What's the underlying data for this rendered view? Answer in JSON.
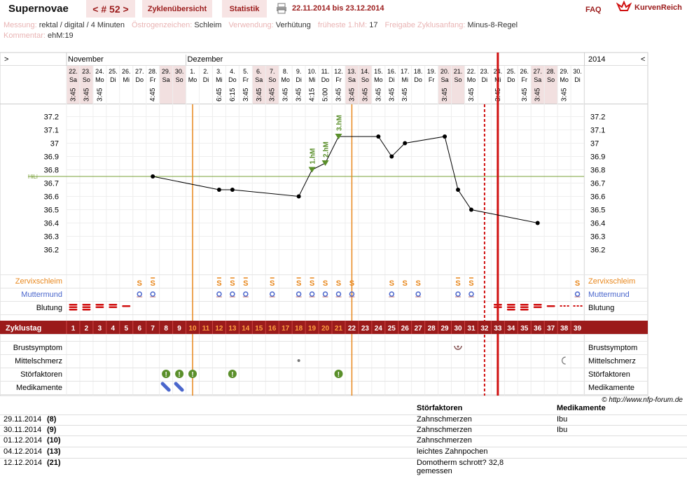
{
  "header": {
    "title": "Supernovae",
    "cycle_nav": "< # 52 >",
    "tab_overview": "Zyklenübersicht",
    "tab_stats": "Statistik",
    "date_range": "22.11.2014 bis 23.12.2014",
    "faq": "FAQ",
    "logo_text": "KurvenReich"
  },
  "meta": [
    {
      "label": "Messung:",
      "value": "rektal / digital / 4 Minuten"
    },
    {
      "label": "Östrogenzeichen:",
      "value": "Schleim"
    },
    {
      "label": "Verwendung:",
      "value": "Verhütung"
    },
    {
      "label": "früheste 1.hM:",
      "value": "17"
    },
    {
      "label": "Freigabe Zyklusanfang:",
      "value": "Minus-8-Regel"
    }
  ],
  "comment": {
    "label": "Kommentar:",
    "value": "ehM:19"
  },
  "copyright": "© http://www.nfp-forum.de",
  "colors": {
    "accent": "#9b1b1b",
    "tab_bg": "#f7e4e4",
    "orange": "#e8871c",
    "red": "#d01010",
    "green": "#5a8f2a",
    "blue": "#4a66cc"
  },
  "chart_data": {
    "type": "line",
    "nav_left": ">",
    "nav_right": "<",
    "year": "2014",
    "months": [
      {
        "label": "November",
        "day": 1
      },
      {
        "label": "Dezember",
        "day": 10
      }
    ],
    "days": [
      {
        "d": 1,
        "date": "22.",
        "wd": "Sa",
        "time": "3:45",
        "we": true
      },
      {
        "d": 2,
        "date": "23.",
        "wd": "So",
        "time": "3:45",
        "we": true
      },
      {
        "d": 3,
        "date": "24.",
        "wd": "Mo",
        "time": "3:45",
        "we": false
      },
      {
        "d": 4,
        "date": "25.",
        "wd": "Di",
        "time": "",
        "we": false
      },
      {
        "d": 5,
        "date": "26.",
        "wd": "Mi",
        "time": "",
        "we": false
      },
      {
        "d": 6,
        "date": "27.",
        "wd": "Do",
        "time": "",
        "we": false
      },
      {
        "d": 7,
        "date": "28.",
        "wd": "Fr",
        "time": "4:45",
        "we": false
      },
      {
        "d": 8,
        "date": "29.",
        "wd": "Sa",
        "time": "",
        "we": true
      },
      {
        "d": 9,
        "date": "30.",
        "wd": "So",
        "time": "",
        "we": true
      },
      {
        "d": 10,
        "date": "1.",
        "wd": "Mo",
        "time": "",
        "we": false
      },
      {
        "d": 11,
        "date": "2.",
        "wd": "Di",
        "time": "",
        "we": false
      },
      {
        "d": 12,
        "date": "3.",
        "wd": "Mi",
        "time": "6:45",
        "we": false
      },
      {
        "d": 13,
        "date": "4.",
        "wd": "Do",
        "time": "6:15",
        "we": false
      },
      {
        "d": 14,
        "date": "5.",
        "wd": "Fr",
        "time": "3:45",
        "we": false
      },
      {
        "d": 15,
        "date": "6.",
        "wd": "Sa",
        "time": "3:45",
        "we": true
      },
      {
        "d": 16,
        "date": "7.",
        "wd": "So",
        "time": "3:45",
        "we": true
      },
      {
        "d": 17,
        "date": "8.",
        "wd": "Mo",
        "time": "3:45",
        "we": false
      },
      {
        "d": 18,
        "date": "9.",
        "wd": "Di",
        "time": "3:45",
        "we": false
      },
      {
        "d": 19,
        "date": "10.",
        "wd": "Mi",
        "time": "4:15",
        "we": false
      },
      {
        "d": 20,
        "date": "11.",
        "wd": "Do",
        "time": "5:00",
        "we": false
      },
      {
        "d": 21,
        "date": "12.",
        "wd": "Fr",
        "time": "3:45",
        "we": false
      },
      {
        "d": 22,
        "date": "13.",
        "wd": "Sa",
        "time": "3:45",
        "we": true
      },
      {
        "d": 23,
        "date": "14.",
        "wd": "So",
        "time": "3:45",
        "we": true
      },
      {
        "d": 24,
        "date": "15.",
        "wd": "Mo",
        "time": "3:45",
        "we": false
      },
      {
        "d": 25,
        "date": "16.",
        "wd": "Di",
        "time": "3:45",
        "we": false
      },
      {
        "d": 26,
        "date": "17.",
        "wd": "Mi",
        "time": "3:45",
        "we": false
      },
      {
        "d": 27,
        "date": "18.",
        "wd": "Do",
        "time": "",
        "we": false
      },
      {
        "d": 28,
        "date": "19.",
        "wd": "Fr",
        "time": "",
        "we": false
      },
      {
        "d": 29,
        "date": "20.",
        "wd": "Sa",
        "time": "3:45",
        "we": true
      },
      {
        "d": 30,
        "date": "21.",
        "wd": "So",
        "time": "",
        "we": true
      },
      {
        "d": 31,
        "date": "22.",
        "wd": "Mo",
        "time": "3:45",
        "we": false
      },
      {
        "d": 32,
        "date": "23.",
        "wd": "Di",
        "time": "",
        "we": false
      },
      {
        "d": 33,
        "date": "24.",
        "wd": "Mi",
        "time": "3:45",
        "we": false
      },
      {
        "d": 34,
        "date": "25.",
        "wd": "Do",
        "time": "",
        "we": false
      },
      {
        "d": 35,
        "date": "26.",
        "wd": "Fr",
        "time": "3:45",
        "we": false
      },
      {
        "d": 36,
        "date": "27.",
        "wd": "Sa",
        "time": "3:45",
        "we": true
      },
      {
        "d": 37,
        "date": "28.",
        "wd": "So",
        "time": "",
        "we": true
      },
      {
        "d": 38,
        "date": "29.",
        "wd": "Mo",
        "time": "3:45",
        "we": false
      },
      {
        "d": 39,
        "date": "30.",
        "wd": "Di",
        "time": "",
        "we": false
      }
    ],
    "y_ticks": [
      37.2,
      37.1,
      37,
      36.9,
      36.8,
      36.7,
      36.6,
      36.5,
      36.4,
      36.3,
      36.2
    ],
    "y_range": [
      36.15,
      37.25
    ],
    "hili": {
      "label": "HiLi",
      "value": 36.75
    },
    "temperatures": [
      {
        "d": 7,
        "t": 36.75
      },
      {
        "d": 12,
        "t": 36.65
      },
      {
        "d": 13,
        "t": 36.65
      },
      {
        "d": 18,
        "t": 36.6
      },
      {
        "d": 19,
        "t": 36.8
      },
      {
        "d": 20,
        "t": 36.85
      },
      {
        "d": 21,
        "t": 37.05
      },
      {
        "d": 24,
        "t": 37.05
      },
      {
        "d": 25,
        "t": 36.9
      },
      {
        "d": 26,
        "t": 37.0
      },
      {
        "d": 29,
        "t": 37.05
      },
      {
        "d": 30,
        "t": 36.65
      },
      {
        "d": 31,
        "t": 36.5
      },
      {
        "d": 36,
        "t": 36.4
      }
    ],
    "hm_markers": [
      {
        "d": 19,
        "label": "1.hM"
      },
      {
        "d": 20,
        "label": "2.hM"
      },
      {
        "d": 21,
        "label": "3.hM"
      }
    ],
    "lines": [
      {
        "d": 9.5,
        "style": "orange"
      },
      {
        "d": 21.5,
        "style": "orange"
      },
      {
        "d": 31.5,
        "style": "red-dashed"
      },
      {
        "d": 32.5,
        "style": "red-thick"
      }
    ],
    "rows": {
      "cervix": "Zervixschleim",
      "mumu": "Muttermund",
      "blood": "Blutung",
      "cycle": "Zyklustag",
      "breast": "Brustsymptom",
      "midpain": "Mittelschmerz",
      "disturb": "Störfaktoren",
      "meds": "Medikamente"
    },
    "cervix_marks": [
      {
        "d": 6,
        "s": "S",
        "v": "s"
      },
      {
        "d": 7,
        "s": "S+",
        "v": "s"
      },
      {
        "d": 12,
        "s": "S+",
        "v": "s"
      },
      {
        "d": 13,
        "s": "S+",
        "v": "s"
      },
      {
        "d": 14,
        "s": "S+",
        "v": "s"
      },
      {
        "d": 16,
        "s": "S+",
        "v": "s"
      },
      {
        "d": 18,
        "s": "S+",
        "v": "s"
      },
      {
        "d": 19,
        "s": "S+",
        "v": "s"
      },
      {
        "d": 20,
        "s": "S",
        "v": "s"
      },
      {
        "d": 21,
        "s": "S",
        "v": "s"
      },
      {
        "d": 22,
        "s": "S",
        "v": "s"
      },
      {
        "d": 25,
        "s": "S",
        "v": "s"
      },
      {
        "d": 26,
        "s": "S",
        "v": "s"
      },
      {
        "d": 27,
        "s": "S",
        "v": "s"
      },
      {
        "d": 30,
        "s": "S+",
        "v": "s"
      },
      {
        "d": 31,
        "s": "S+",
        "v": "s"
      },
      {
        "d": 39,
        "s": "S",
        "v": "s"
      }
    ],
    "cervix_symbol": "S",
    "mumu_days": [
      6,
      7,
      12,
      13,
      14,
      16,
      18,
      19,
      20,
      21,
      22,
      25,
      27,
      30,
      31,
      39
    ],
    "blood": [
      {
        "d": 1,
        "n": 3
      },
      {
        "d": 2,
        "n": 3
      },
      {
        "d": 3,
        "n": 2
      },
      {
        "d": 4,
        "n": 2
      },
      {
        "d": 5,
        "n": 1
      },
      {
        "d": 33,
        "n": 2
      },
      {
        "d": 34,
        "n": 3
      },
      {
        "d": 35,
        "n": 3
      },
      {
        "d": 36,
        "n": 2
      },
      {
        "d": 37,
        "n": 1
      },
      {
        "d": 38,
        "n": 0
      },
      {
        "d": 39,
        "n": 0
      }
    ],
    "cycle_days": [
      "1",
      "2",
      "3",
      "4",
      "5",
      "6",
      "7",
      "8",
      "9",
      "10",
      "11",
      "12",
      "13",
      "14",
      "15",
      "16",
      "17",
      "18",
      "19",
      "20",
      "21",
      "22",
      "23",
      "24",
      "25",
      "26",
      "27",
      "28",
      "29",
      "30",
      "31",
      "32",
      "33",
      "34",
      "35",
      "36",
      "37",
      "38",
      "39"
    ],
    "cycle_highlight": [
      10,
      11,
      12,
      13,
      14,
      15,
      16,
      17,
      18,
      19,
      20,
      21
    ],
    "breast_days": [
      30
    ],
    "midpain_days": [
      18,
      38
    ],
    "disturb_days": [
      8,
      9,
      10,
      13,
      21
    ],
    "meds_days": [
      8,
      9
    ]
  },
  "notes": {
    "head_stor": "Störfaktoren",
    "head_med": "Medikamente",
    "rows": [
      {
        "date": "29.11.2014",
        "day": "(8)",
        "stor": "Zahnschmerzen",
        "med": "Ibu"
      },
      {
        "date": "30.11.2014",
        "day": "(9)",
        "stor": "Zahnschmerzen",
        "med": "Ibu"
      },
      {
        "date": "01.12.2014",
        "day": "(10)",
        "stor": "Zahnschmerzen",
        "med": ""
      },
      {
        "date": "04.12.2014",
        "day": "(13)",
        "stor": "leichtes Zahnpochen",
        "med": ""
      },
      {
        "date": "12.12.2014",
        "day": "(21)",
        "stor": "Domotherm schrott? 32,8",
        "stor2": "gemessen",
        "med": ""
      }
    ]
  }
}
